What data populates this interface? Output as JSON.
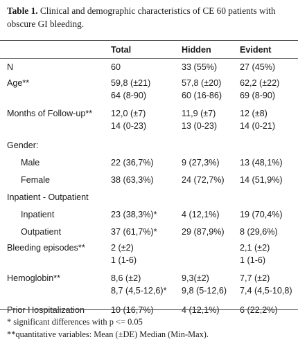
{
  "caption": {
    "label": "Table 1.",
    "text": " Clinical and demographic characteristics of CE 60 patients with obscure GI bleeding."
  },
  "table": {
    "headers": [
      "",
      "Total",
      "Hidden",
      "Evident"
    ],
    "rows": [
      {
        "label": "N",
        "indent": false,
        "cells": [
          [
            "60"
          ],
          [
            "33 (55%)"
          ],
          [
            "27 (45%)"
          ]
        ]
      },
      {
        "label": "Age**",
        "indent": false,
        "cells": [
          [
            "59,8 (±21)",
            "64 (8-90)"
          ],
          [
            "57,8 (±20)",
            "60 (16-86)"
          ],
          [
            "62,2 (±22)",
            "69 (8-90)"
          ]
        ]
      },
      {
        "label": "Months of Follow-up**",
        "indent": false,
        "cells": [
          [
            "12,0 (±7)",
            "14 (0-23)"
          ],
          [
            "11,9 (±7)",
            "13 (0-23)"
          ],
          [
            "12 (±8)",
            "14 (0-21)"
          ]
        ]
      },
      {
        "label": "Gender:",
        "indent": false,
        "cells": [
          [
            ""
          ],
          [
            ""
          ],
          [
            ""
          ]
        ]
      },
      {
        "label": "Male",
        "indent": true,
        "cells": [
          [
            "22 (36,7%)"
          ],
          [
            "9 (27,3%)"
          ],
          [
            "13 (48,1%)"
          ]
        ]
      },
      {
        "label": "Female",
        "indent": true,
        "cells": [
          [
            "38 (63,3%)"
          ],
          [
            "24 (72,7%)"
          ],
          [
            "14 (51,9%)"
          ]
        ]
      },
      {
        "label": "Inpatient - Outpatient",
        "indent": false,
        "cells": [
          [
            ""
          ],
          [
            ""
          ],
          [
            ""
          ]
        ]
      },
      {
        "label": "Inpatient",
        "indent": true,
        "cells": [
          [
            "23 (38,3%)*"
          ],
          [
            "4 (12,1%)"
          ],
          [
            "19 (70,4%)"
          ]
        ]
      },
      {
        "label": "Outpatient",
        "indent": true,
        "cells": [
          [
            "37 (61,7%)*"
          ],
          [
            "29 (87,9%)"
          ],
          [
            "8 (29,6%)"
          ]
        ]
      },
      {
        "label": "Bleeding episodes**",
        "indent": false,
        "cells": [
          [
            "2 (±2)",
            "1 (1-6)"
          ],
          [
            ""
          ],
          [
            "2,1 (±2)",
            "1 (1-6)"
          ]
        ]
      },
      {
        "label": "Hemoglobin**",
        "indent": false,
        "cells": [
          [
            "8,6 (±2)",
            "8,7 (4,5-12,6)*"
          ],
          [
            "9,3(±2)",
            "9,8 (5-12,6)"
          ],
          [
            "7,7 (±2)",
            "7,4 (4,5-10,8)"
          ]
        ]
      },
      {
        "label": "Prior Hospitalization",
        "indent": false,
        "cells": [
          [
            "10 (16,7%)"
          ],
          [
            "4 (12,1%)"
          ],
          [
            "6 (22,2%)"
          ]
        ]
      }
    ]
  },
  "footnotes": [
    "* significant differences with p <= 0.05",
    "**quantitative variables: Mean (±DE) Median (Min-Max)."
  ]
}
